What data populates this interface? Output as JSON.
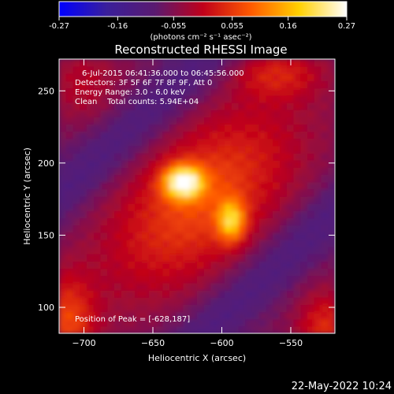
{
  "chart_data": {
    "type": "heatmap",
    "title": "Reconstructed RHESSI Image",
    "xlabel": "Heliocentric X (arcsec)",
    "ylabel": "Heliocentric Y (arcsec)",
    "xlim": [
      -718,
      -518
    ],
    "ylim": [
      82,
      272
    ],
    "x_ticks": [
      -700,
      -650,
      -600,
      -550
    ],
    "y_ticks": [
      100,
      150,
      200,
      250
    ],
    "colorbar": {
      "range": [
        -0.27,
        0.27
      ],
      "ticks": [
        "-0.27",
        "-0.16",
        "-0.055",
        "0.055",
        "0.16",
        "0.27"
      ],
      "unit_label": "(photons cm⁻² s⁻¹ asec⁻²)",
      "colors": [
        "#0000ff",
        "#3a1f9a",
        "#5a1a70",
        "#c0001a",
        "#ff5a00",
        "#ffd000",
        "#ffffff"
      ]
    },
    "annotations": {
      "time": "6-Jul-2015 06:41:36.000 to 06:45:56.000",
      "detectors": "Detectors: 3F 5F 6F 7F 8F 9F, Att 0",
      "energy": "Energy Range: 3.0 - 6.0 keV",
      "clean": "Clean    Total counts: 5.94E+04",
      "peak": "Position of Peak = [-628,187]"
    },
    "sources": [
      {
        "x": -628,
        "y": 187,
        "peak": 0.27
      },
      {
        "x": -593,
        "y": 160,
        "peak": 0.22
      }
    ],
    "footer_timestamp": "22-May-2022 10:24"
  }
}
